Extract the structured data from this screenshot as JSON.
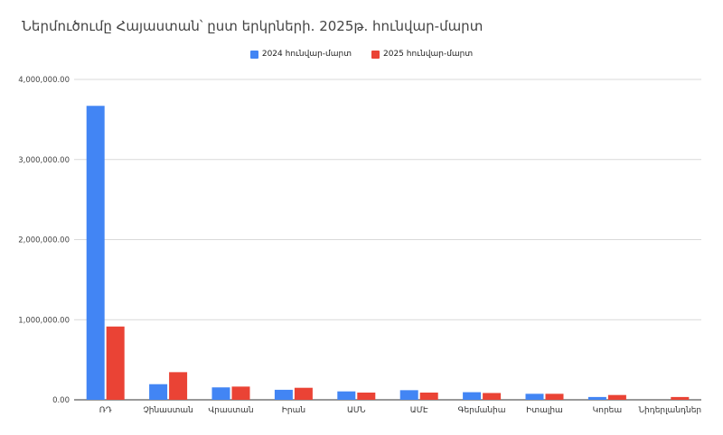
{
  "chart_data": {
    "type": "bar",
    "title": "Ներմուծումը Հայաստան՝ ըստ երկրների. 2025թ. հունվար-մարտ",
    "categories": [
      "ՌԴ",
      "Չինաստան",
      "Վրաստան",
      "Իրան",
      "ԱՄՆ",
      "ԱՄԷ",
      "Գերմանիա",
      "Իտալիա",
      "Կորեա",
      "Նիդերլանդներ"
    ],
    "series": [
      {
        "name": "2024 հունվար-մարտ",
        "color": "#4285f4",
        "values": [
          3670000,
          195000,
          155000,
          125000,
          105000,
          120000,
          95000,
          75000,
          35000,
          0
        ]
      },
      {
        "name": "2025 հունվար-մարտ",
        "color": "#ea4335",
        "values": [
          915000,
          345000,
          165000,
          150000,
          90000,
          90000,
          85000,
          75000,
          60000,
          35000
        ]
      }
    ],
    "yticks": [
      "0.00",
      "1,000,000.00",
      "2,000,000.00",
      "3,000,000.00",
      "4,000,000.00"
    ],
    "ylim": [
      0,
      4000000
    ],
    "grid": true,
    "legend_position": "top"
  }
}
